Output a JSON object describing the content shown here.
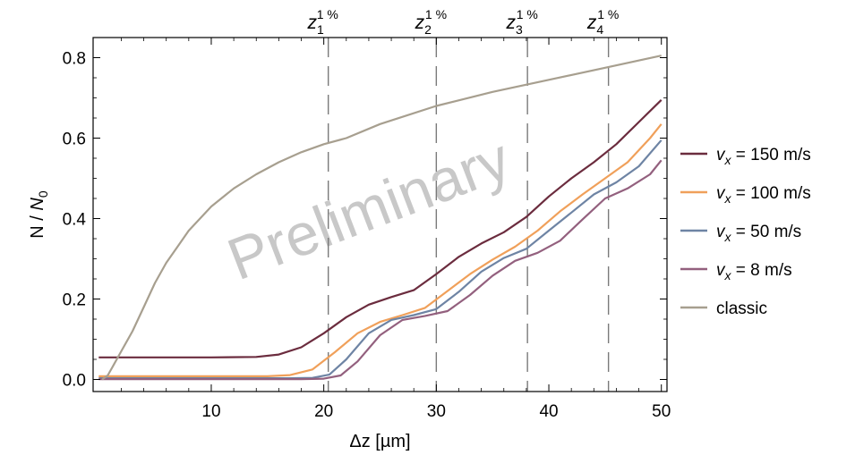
{
  "chart_data": {
    "type": "line",
    "xlabel": "Δz [µm]",
    "ylabel_main": "N / ",
    "ylabel_italic": "N",
    "ylabel_sub": "0",
    "xlim": [
      -0.5,
      50.5
    ],
    "ylim": [
      -0.03,
      0.85
    ],
    "x_ticks": [
      10,
      20,
      30,
      40,
      50
    ],
    "y_ticks": [
      0.0,
      0.2,
      0.4,
      0.6,
      0.8
    ],
    "x_tick_labels": [
      "10",
      "20",
      "30",
      "40",
      "50"
    ],
    "y_tick_labels": [
      "0.0",
      "0.2",
      "0.4",
      "0.6",
      "0.8"
    ],
    "watermark": "Preliminary",
    "markers": [
      {
        "x": 20.4,
        "base": "z",
        "sub": "1",
        "sup": "1 %"
      },
      {
        "x": 30.0,
        "base": "z",
        "sub": "2",
        "sup": "1 %"
      },
      {
        "x": 38.1,
        "base": "z",
        "sub": "3",
        "sup": "1 %"
      },
      {
        "x": 45.3,
        "base": "z",
        "sub": "4",
        "sup": "1 %"
      }
    ],
    "series": [
      {
        "legend_var": "v",
        "legend_sub": "x",
        "legend_rest": " = 150 m/s",
        "color": "#6b2c3e",
        "points": [
          [
            0,
            0.055
          ],
          [
            10,
            0.055
          ],
          [
            14,
            0.056
          ],
          [
            16,
            0.062
          ],
          [
            18,
            0.08
          ],
          [
            20,
            0.115
          ],
          [
            22,
            0.155
          ],
          [
            24,
            0.186
          ],
          [
            26,
            0.205
          ],
          [
            28,
            0.222
          ],
          [
            30,
            0.262
          ],
          [
            32,
            0.305
          ],
          [
            34,
            0.338
          ],
          [
            36,
            0.366
          ],
          [
            38,
            0.404
          ],
          [
            40,
            0.455
          ],
          [
            42,
            0.5
          ],
          [
            44,
            0.54
          ],
          [
            46,
            0.585
          ],
          [
            48,
            0.64
          ],
          [
            50,
            0.695
          ]
        ]
      },
      {
        "legend_var": "v",
        "legend_sub": "x",
        "legend_rest": " = 100 m/s",
        "color": "#f0a05a",
        "points": [
          [
            0,
            0.008
          ],
          [
            10,
            0.008
          ],
          [
            15,
            0.008
          ],
          [
            17,
            0.011
          ],
          [
            19,
            0.025
          ],
          [
            21,
            0.068
          ],
          [
            23,
            0.115
          ],
          [
            25,
            0.143
          ],
          [
            27,
            0.16
          ],
          [
            29,
            0.178
          ],
          [
            31,
            0.22
          ],
          [
            33,
            0.262
          ],
          [
            35,
            0.298
          ],
          [
            37,
            0.33
          ],
          [
            39,
            0.37
          ],
          [
            41,
            0.418
          ],
          [
            43,
            0.46
          ],
          [
            45,
            0.5
          ],
          [
            47,
            0.54
          ],
          [
            49,
            0.6
          ],
          [
            50,
            0.635
          ]
        ]
      },
      {
        "legend_var": "v",
        "legend_sub": "x",
        "legend_rest": " = 50 m/s",
        "color": "#6e84a4",
        "points": [
          [
            0,
            0.003
          ],
          [
            10,
            0.003
          ],
          [
            17,
            0.003
          ],
          [
            19,
            0.004
          ],
          [
            20.5,
            0.012
          ],
          [
            22,
            0.05
          ],
          [
            24,
            0.115
          ],
          [
            26,
            0.148
          ],
          [
            28,
            0.16
          ],
          [
            30,
            0.175
          ],
          [
            32,
            0.218
          ],
          [
            34,
            0.268
          ],
          [
            36,
            0.302
          ],
          [
            38,
            0.325
          ],
          [
            40,
            0.37
          ],
          [
            42,
            0.415
          ],
          [
            44,
            0.46
          ],
          [
            46,
            0.49
          ],
          [
            48,
            0.53
          ],
          [
            50,
            0.595
          ]
        ]
      },
      {
        "legend_var": "v",
        "legend_sub": "x",
        "legend_rest": " = 8 m/s",
        "color": "#93607e",
        "points": [
          [
            0,
            0.001
          ],
          [
            10,
            0.001
          ],
          [
            18,
            0.001
          ],
          [
            20,
            0.002
          ],
          [
            21.5,
            0.01
          ],
          [
            23,
            0.045
          ],
          [
            25,
            0.11
          ],
          [
            27,
            0.148
          ],
          [
            29,
            0.158
          ],
          [
            31,
            0.17
          ],
          [
            33,
            0.21
          ],
          [
            35,
            0.258
          ],
          [
            37,
            0.295
          ],
          [
            39,
            0.315
          ],
          [
            41,
            0.345
          ],
          [
            43,
            0.398
          ],
          [
            45,
            0.45
          ],
          [
            47,
            0.475
          ],
          [
            49,
            0.51
          ],
          [
            50,
            0.545
          ]
        ]
      },
      {
        "legend_var": "",
        "legend_sub": "",
        "legend_rest": "classic",
        "color": "#a79f8f",
        "points": [
          [
            0.3,
            0.0
          ],
          [
            0.8,
            0.01
          ],
          [
            1.2,
            0.03
          ],
          [
            2,
            0.07
          ],
          [
            3,
            0.12
          ],
          [
            4,
            0.18
          ],
          [
            5,
            0.24
          ],
          [
            6,
            0.29
          ],
          [
            7,
            0.33
          ],
          [
            8,
            0.37
          ],
          [
            10,
            0.43
          ],
          [
            12,
            0.475
          ],
          [
            14,
            0.51
          ],
          [
            16,
            0.54
          ],
          [
            18,
            0.565
          ],
          [
            20,
            0.585
          ],
          [
            22,
            0.6
          ],
          [
            25,
            0.635
          ],
          [
            30,
            0.68
          ],
          [
            35,
            0.715
          ],
          [
            40,
            0.745
          ],
          [
            45,
            0.775
          ],
          [
            50,
            0.805
          ]
        ]
      }
    ]
  }
}
